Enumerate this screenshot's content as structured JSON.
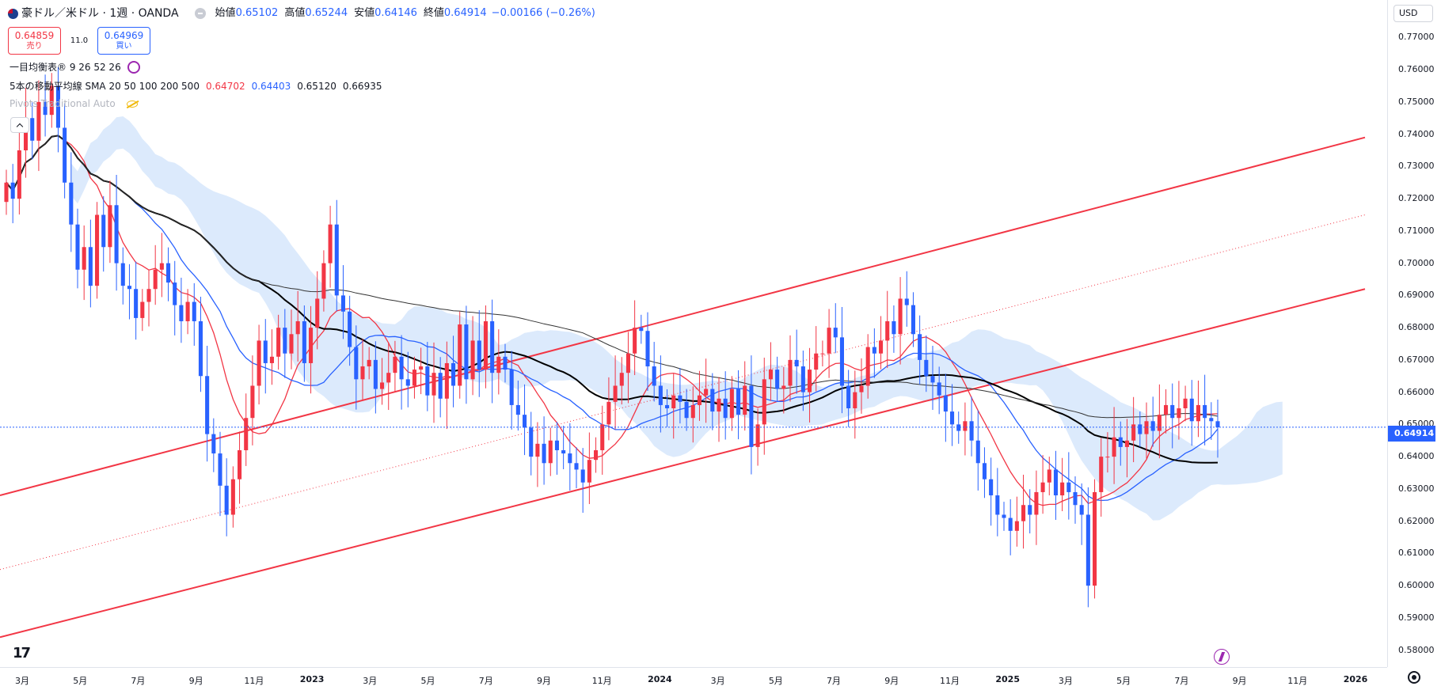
{
  "header": {
    "symbol": "豪ドル／米ドル · 1週 · OANDA",
    "open_label": "始値",
    "open_value": "0.65102",
    "high_label": "高値",
    "high_value": "0.65244",
    "low_label": "安値",
    "low_value": "0.64146",
    "close_label": "終値",
    "close_value": "0.64914",
    "change": "−0.00166 (−0.26%)"
  },
  "trade": {
    "sell_price": "0.64859",
    "sell_label": "売り",
    "spread": "11.0",
    "buy_price": "0.64969",
    "buy_label": "買い"
  },
  "indicators": {
    "ichimoku": "一目均衡表® 9 26 52 26",
    "ma_name": "5本の移動平均線 SMA 20 50 100 200 500",
    "ma_val1": "0.64702",
    "ma_val2": "0.64403",
    "ma_val3": "0.65120",
    "ma_val4": "0.66935",
    "pivots": "Pivots Traditional Auto"
  },
  "axis": {
    "currency": "USD",
    "last_price": "0.64914",
    "y_ticks": [
      "0.77000",
      "0.76000",
      "0.75000",
      "0.74000",
      "0.73000",
      "0.72000",
      "0.71000",
      "0.70000",
      "0.69000",
      "0.68000",
      "0.67000",
      "0.66000",
      "0.65000",
      "0.64000",
      "0.63000",
      "0.62000",
      "0.61000",
      "0.60000",
      "0.59000",
      "0.58000"
    ],
    "x_ticks": [
      "3月",
      "5月",
      "7月",
      "9月",
      "11月",
      "2023",
      "3月",
      "5月",
      "7月",
      "9月",
      "11月",
      "2024",
      "3月",
      "5月",
      "7月",
      "9月",
      "11月",
      "2025",
      "3月",
      "5月",
      "7月",
      "9月",
      "11月",
      "2026"
    ]
  },
  "logo": "17",
  "colors": {
    "bull": "#f23645",
    "bear": "#2962ff",
    "cloud": "#d6e6fb",
    "cloud_red": "#fde1e3"
  },
  "chart_data": {
    "type": "candlestick",
    "title": "豪ドル／米ドル · 1週 · OANDA",
    "xlabel": "",
    "ylabel": "",
    "ylim": [
      0.575,
      0.775
    ],
    "x_range": [
      "2022-02-14",
      "2026-02-23"
    ],
    "closes": [
      0.725,
      0.72,
      0.735,
      0.745,
      0.738,
      0.75,
      0.746,
      0.755,
      0.742,
      0.725,
      0.712,
      0.698,
      0.705,
      0.693,
      0.715,
      0.705,
      0.718,
      0.7,
      0.693,
      0.692,
      0.683,
      0.688,
      0.692,
      0.698,
      0.7,
      0.694,
      0.687,
      0.682,
      0.688,
      0.682,
      0.665,
      0.647,
      0.641,
      0.631,
      0.622,
      0.633,
      0.642,
      0.652,
      0.662,
      0.676,
      0.669,
      0.671,
      0.68,
      0.672,
      0.678,
      0.682,
      0.669,
      0.68,
      0.689,
      0.7,
      0.712,
      0.69,
      0.685,
      0.674,
      0.664,
      0.668,
      0.67,
      0.661,
      0.663,
      0.666,
      0.671,
      0.664,
      0.662,
      0.667,
      0.668,
      0.659,
      0.666,
      0.658,
      0.669,
      0.662,
      0.681,
      0.664,
      0.676,
      0.667,
      0.682,
      0.666,
      0.671,
      0.667,
      0.656,
      0.653,
      0.649,
      0.64,
      0.644,
      0.638,
      0.645,
      0.642,
      0.641,
      0.638,
      0.636,
      0.632,
      0.639,
      0.642,
      0.65,
      0.657,
      0.662,
      0.666,
      0.672,
      0.68,
      0.679,
      0.668,
      0.662,
      0.656,
      0.655,
      0.659,
      0.657,
      0.652,
      0.656,
      0.659,
      0.661,
      0.654,
      0.658,
      0.652,
      0.661,
      0.653,
      0.662,
      0.643,
      0.65,
      0.664,
      0.667,
      0.661,
      0.662,
      0.67,
      0.668,
      0.66,
      0.667,
      0.672,
      0.672,
      0.68,
      0.677,
      0.662,
      0.655,
      0.66,
      0.662,
      0.674,
      0.672,
      0.676,
      0.682,
      0.678,
      0.689,
      0.687,
      0.678,
      0.67,
      0.665,
      0.663,
      0.659,
      0.654,
      0.65,
      0.648,
      0.651,
      0.645,
      0.638,
      0.633,
      0.628,
      0.622,
      0.621,
      0.617,
      0.62,
      0.625,
      0.622,
      0.629,
      0.632,
      0.636,
      0.628,
      0.632,
      0.629,
      0.625,
      0.622,
      0.6,
      0.629,
      0.64,
      0.64,
      0.646,
      0.643,
      0.645,
      0.65,
      0.647,
      0.651,
      0.648,
      0.653,
      0.656,
      0.652,
      0.655,
      0.658,
      0.651,
      0.656,
      0.652,
      0.651,
      0.6491
    ]
  }
}
